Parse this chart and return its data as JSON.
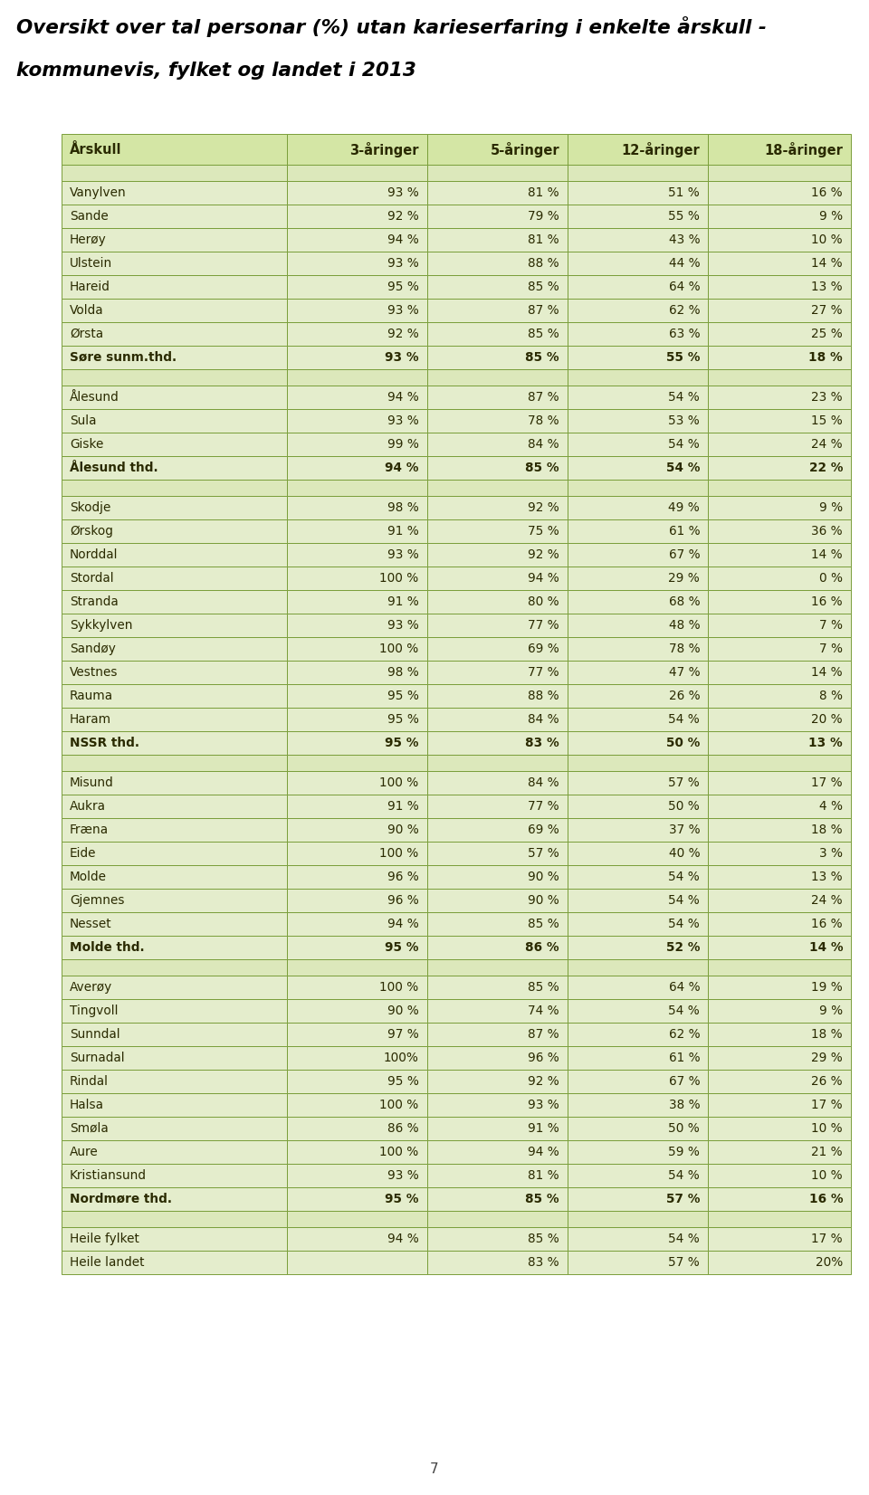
{
  "title_line1": "Oversikt over tal personar (%) utan karieserfaring i enkelte årskull -",
  "title_line2": "kommunevis, fylket og landet i 2013",
  "headers": [
    "Årskull",
    "3-åringer",
    "5-åringer",
    "12-åringer",
    "18-åringer"
  ],
  "rows": [
    {
      "name": "Vanylven",
      "v3": "93 %",
      "v5": "81 %",
      "v12": "51 %",
      "v18": "16 %",
      "bold": false,
      "sep": true
    },
    {
      "name": "Sande",
      "v3": "92 %",
      "v5": "79 %",
      "v12": "55 %",
      "v18": "9 %",
      "bold": false,
      "sep": false
    },
    {
      "name": "Herøy",
      "v3": "94 %",
      "v5": "81 %",
      "v12": "43 %",
      "v18": "10 %",
      "bold": false,
      "sep": false
    },
    {
      "name": "Ulstein",
      "v3": "93 %",
      "v5": "88 %",
      "v12": "44 %",
      "v18": "14 %",
      "bold": false,
      "sep": false
    },
    {
      "name": "Hareid",
      "v3": "95 %",
      "v5": "85 %",
      "v12": "64 %",
      "v18": "13 %",
      "bold": false,
      "sep": false
    },
    {
      "name": "Volda",
      "v3": "93 %",
      "v5": "87 %",
      "v12": "62 %",
      "v18": "27 %",
      "bold": false,
      "sep": false
    },
    {
      "name": "Ørsta",
      "v3": "92 %",
      "v5": "85 %",
      "v12": "63 %",
      "v18": "25 %",
      "bold": false,
      "sep": false
    },
    {
      "name": "Søre sunm.thd.",
      "v3": "93 %",
      "v5": "85 %",
      "v12": "55 %",
      "v18": "18 %",
      "bold": true,
      "sep": false
    },
    {
      "name": "Ålesund",
      "v3": "94 %",
      "v5": "87 %",
      "v12": "54 %",
      "v18": "23 %",
      "bold": false,
      "sep": true
    },
    {
      "name": "Sula",
      "v3": "93 %",
      "v5": "78 %",
      "v12": "53 %",
      "v18": "15 %",
      "bold": false,
      "sep": false
    },
    {
      "name": "Giske",
      "v3": "99 %",
      "v5": "84 %",
      "v12": "54 %",
      "v18": "24 %",
      "bold": false,
      "sep": false
    },
    {
      "name": "Ålesund thd.",
      "v3": "94 %",
      "v5": "85 %",
      "v12": "54 %",
      "v18": "22 %",
      "bold": true,
      "sep": false
    },
    {
      "name": "Skodje",
      "v3": "98 %",
      "v5": "92 %",
      "v12": "49 %",
      "v18": "9 %",
      "bold": false,
      "sep": true
    },
    {
      "name": "Ørskog",
      "v3": "91 %",
      "v5": "75 %",
      "v12": "61 %",
      "v18": "36 %",
      "bold": false,
      "sep": false
    },
    {
      "name": "Norddal",
      "v3": "93 %",
      "v5": "92 %",
      "v12": "67 %",
      "v18": "14 %",
      "bold": false,
      "sep": false
    },
    {
      "name": "Stordal",
      "v3": "100 %",
      "v5": "94 %",
      "v12": "29 %",
      "v18": "0 %",
      "bold": false,
      "sep": false
    },
    {
      "name": "Stranda",
      "v3": "91 %",
      "v5": "80 %",
      "v12": "68 %",
      "v18": "16 %",
      "bold": false,
      "sep": false
    },
    {
      "name": "Sykkylven",
      "v3": "93 %",
      "v5": "77 %",
      "v12": "48 %",
      "v18": "7 %",
      "bold": false,
      "sep": false
    },
    {
      "name": "Sandøy",
      "v3": "100 %",
      "v5": "69 %",
      "v12": "78 %",
      "v18": "7 %",
      "bold": false,
      "sep": false
    },
    {
      "name": "Vestnes",
      "v3": "98 %",
      "v5": "77 %",
      "v12": "47 %",
      "v18": "14 %",
      "bold": false,
      "sep": false
    },
    {
      "name": "Rauma",
      "v3": "95 %",
      "v5": "88 %",
      "v12": "26 %",
      "v18": "8 %",
      "bold": false,
      "sep": false
    },
    {
      "name": "Haram",
      "v3": "95 %",
      "v5": "84 %",
      "v12": "54 %",
      "v18": "20 %",
      "bold": false,
      "sep": false
    },
    {
      "name": "NSSR thd.",
      "v3": "95 %",
      "v5": "83 %",
      "v12": "50 %",
      "v18": "13 %",
      "bold": true,
      "sep": false
    },
    {
      "name": "Misund",
      "v3": "100 %",
      "v5": "84 %",
      "v12": "57 %",
      "v18": "17 %",
      "bold": false,
      "sep": true
    },
    {
      "name": "Aukra",
      "v3": "91 %",
      "v5": "77 %",
      "v12": "50 %",
      "v18": "4 %",
      "bold": false,
      "sep": false
    },
    {
      "name": "Fræna",
      "v3": "90 %",
      "v5": "69 %",
      "v12": "37 %",
      "v18": "18 %",
      "bold": false,
      "sep": false
    },
    {
      "name": "Eide",
      "v3": "100 %",
      "v5": "57 %",
      "v12": "40 %",
      "v18": "3 %",
      "bold": false,
      "sep": false
    },
    {
      "name": "Molde",
      "v3": "96 %",
      "v5": "90 %",
      "v12": "54 %",
      "v18": "13 %",
      "bold": false,
      "sep": false
    },
    {
      "name": "Gjemnes",
      "v3": "96 %",
      "v5": "90 %",
      "v12": "54 %",
      "v18": "24 %",
      "bold": false,
      "sep": false
    },
    {
      "name": "Nesset",
      "v3": "94 %",
      "v5": "85 %",
      "v12": "54 %",
      "v18": "16 %",
      "bold": false,
      "sep": false
    },
    {
      "name": "Molde thd.",
      "v3": "95 %",
      "v5": "86 %",
      "v12": "52 %",
      "v18": "14 %",
      "bold": true,
      "sep": false
    },
    {
      "name": "Averøy",
      "v3": "100 %",
      "v5": "85 %",
      "v12": "64 %",
      "v18": "19 %",
      "bold": false,
      "sep": true
    },
    {
      "name": "Tingvoll",
      "v3": "90 %",
      "v5": "74 %",
      "v12": "54 %",
      "v18": "9 %",
      "bold": false,
      "sep": false
    },
    {
      "name": "Sunndal",
      "v3": "97 %",
      "v5": "87 %",
      "v12": "62 %",
      "v18": "18 %",
      "bold": false,
      "sep": false
    },
    {
      "name": "Surnadal",
      "v3": "100%",
      "v5": "96 %",
      "v12": "61 %",
      "v18": "29 %",
      "bold": false,
      "sep": false
    },
    {
      "name": "Rindal",
      "v3": "95 %",
      "v5": "92 %",
      "v12": "67 %",
      "v18": "26 %",
      "bold": false,
      "sep": false
    },
    {
      "name": "Halsa",
      "v3": "100 %",
      "v5": "93 %",
      "v12": "38 %",
      "v18": "17 %",
      "bold": false,
      "sep": false
    },
    {
      "name": "Smøla",
      "v3": "86 %",
      "v5": "91 %",
      "v12": "50 %",
      "v18": "10 %",
      "bold": false,
      "sep": false
    },
    {
      "name": "Aure",
      "v3": "100 %",
      "v5": "94 %",
      "v12": "59 %",
      "v18": "21 %",
      "bold": false,
      "sep": false
    },
    {
      "name": "Kristiansund",
      "v3": "93 %",
      "v5": "81 %",
      "v12": "54 %",
      "v18": "10 %",
      "bold": false,
      "sep": false
    },
    {
      "name": "Nordmøre thd.",
      "v3": "95 %",
      "v5": "85 %",
      "v12": "57 %",
      "v18": "16 %",
      "bold": true,
      "sep": false
    },
    {
      "name": "Heile fylket",
      "v3": "94 %",
      "v5": "85 %",
      "v12": "54 %",
      "v18": "17 %",
      "bold": false,
      "sep": true
    },
    {
      "name": "Heile landet",
      "v3": "",
      "v5": "83 %",
      "v12": "57 %",
      "v18": "20%",
      "bold": false,
      "sep": false
    }
  ],
  "bg_header": "#d4e6a5",
  "bg_row": "#e4edcc",
  "bg_sep": "#dce8bb",
  "border": "#7a9e3a",
  "text_color": "#2a2a00",
  "title_color": "#000000",
  "page_num": "7"
}
